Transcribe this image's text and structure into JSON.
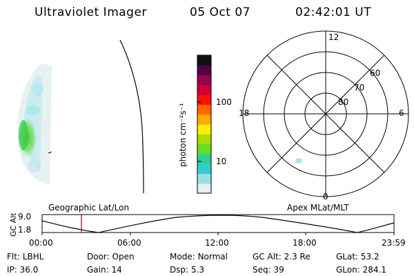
{
  "header": {
    "instrument": "Ultraviolet Imager",
    "date": "05 Oct 07",
    "time": "02:42:01 UT"
  },
  "colorbar": {
    "unit_label": "photon cm⁻²s⁻¹",
    "tick_labels": [
      "100",
      "10"
    ],
    "gradient_colors": [
      "#e6eef0",
      "#99e0e0",
      "#33cccc",
      "#33cc99",
      "#66dd22",
      "#aadd00",
      "#ffee00",
      "#ffaa00",
      "#ff6600",
      "#ff1100",
      "#cc0033",
      "#99004d",
      "#550044",
      "#111111"
    ]
  },
  "polar_plot": {
    "mlt_labels": {
      "top": "12",
      "left": "18",
      "right": "6",
      "bottom": "0"
    },
    "lat_labels": [
      "60",
      "70",
      "80"
    ]
  },
  "altitude_plot": {
    "axis_label": "GC Alt",
    "y_ticks": [
      "9.0",
      "1.8"
    ],
    "left_title": "Geographic Lat/Lon",
    "right_title": "Apex MLat/MLT",
    "x_ticks": [
      "00:00",
      "06:00",
      "12:00",
      "18:00",
      "23:59"
    ],
    "marker_color": "#cc0000"
  },
  "status": {
    "row1": [
      {
        "label": "Flt:",
        "value": "LBHL"
      },
      {
        "label": "Door:",
        "value": "Open"
      },
      {
        "label": "Mode:",
        "value": "Normal"
      },
      {
        "label": "GC Alt:",
        "value": "2.3 Re"
      },
      {
        "label": "GLat:",
        "value": "53.2"
      }
    ],
    "row2": [
      {
        "label": "IP:",
        "value": "36.0"
      },
      {
        "label": "Gain:",
        "value": "14"
      },
      {
        "label": "Dsp:",
        "value": "5.3"
      },
      {
        "label": "Seq:",
        "value": "39"
      },
      {
        "label": "GLon:",
        "value": "284.1"
      }
    ]
  }
}
